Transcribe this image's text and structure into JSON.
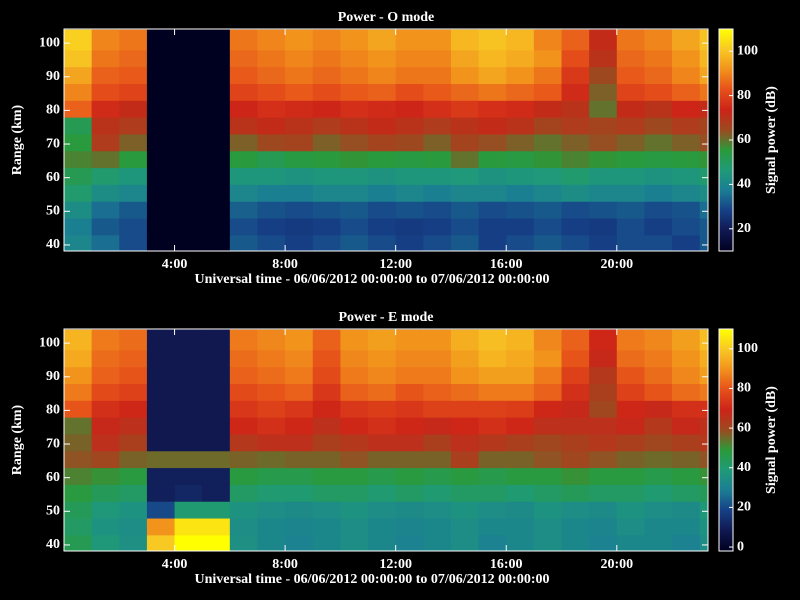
{
  "chart_data": [
    {
      "type": "heatmap",
      "title": "Power - O mode",
      "xlabel": "Universal time - 06/06/2012 00:00:00 to 07/06/2012 00:00:00",
      "ylabel": "Range (km)",
      "colorbar_label": "Signal power (dB)",
      "xlim": [
        0,
        23.3
      ],
      "ylim": [
        38.2,
        104.2
      ],
      "xticks": [
        {
          "value": 4,
          "label": "4:00"
        },
        {
          "value": 8,
          "label": "8:00"
        },
        {
          "value": 12,
          "label": "12:00"
        },
        {
          "value": 16,
          "label": "16:00"
        },
        {
          "value": 20,
          "label": "20:00"
        }
      ],
      "yticks": [
        40,
        50,
        60,
        70,
        80,
        90,
        100
      ],
      "clim": [
        10,
        110
      ],
      "cticks": [
        20,
        40,
        60,
        80,
        100
      ],
      "colormap": [
        "#000020",
        "#101850",
        "#163f86",
        "#1b7d94",
        "#1f9a78",
        "#2a9a3a",
        "#9c4a20",
        "#cc2418",
        "#e6501a",
        "#f2921c",
        "#f8c824",
        "#ffff00"
      ],
      "xbins": [
        0,
        1,
        2,
        3,
        4,
        5,
        6,
        7,
        8,
        9,
        10,
        11,
        12,
        13,
        14,
        15,
        16,
        17,
        18,
        19,
        20,
        21,
        22,
        23,
        24
      ],
      "ybins": [
        38,
        43,
        48,
        53,
        58,
        63,
        68,
        73,
        78,
        83,
        88,
        93,
        98,
        104
      ],
      "z": [
        [
          40,
          35,
          30,
          5,
          5,
          5,
          32,
          30,
          28,
          30,
          32,
          30,
          28,
          30,
          32,
          28,
          30,
          32,
          30,
          28,
          30,
          30,
          28,
          32
        ],
        [
          38,
          32,
          30,
          5,
          5,
          5,
          30,
          28,
          27,
          28,
          30,
          28,
          27,
          28,
          30,
          28,
          28,
          30,
          28,
          27,
          30,
          28,
          30,
          32
        ],
        [
          42,
          35,
          32,
          5,
          5,
          5,
          33,
          31,
          30,
          31,
          32,
          30,
          31,
          30,
          32,
          30,
          31,
          32,
          30,
          31,
          32,
          30,
          31,
          35
        ],
        [
          48,
          42,
          40,
          5,
          5,
          5,
          40,
          38,
          38,
          40,
          40,
          38,
          40,
          38,
          40,
          40,
          38,
          40,
          42,
          40,
          40,
          38,
          40,
          42
        ],
        [
          52,
          48,
          45,
          5,
          5,
          5,
          45,
          45,
          44,
          45,
          45,
          44,
          45,
          45,
          46,
          44,
          45,
          46,
          48,
          45,
          45,
          44,
          45,
          48
        ],
        [
          58,
          60,
          55,
          5,
          5,
          5,
          55,
          52,
          54,
          55,
          56,
          55,
          54,
          55,
          60,
          55,
          54,
          56,
          58,
          56,
          55,
          54,
          55,
          56
        ],
        [
          55,
          68,
          62,
          5,
          5,
          5,
          62,
          65,
          66,
          62,
          64,
          66,
          65,
          62,
          66,
          64,
          62,
          60,
          62,
          64,
          62,
          60,
          62,
          64
        ],
        [
          52,
          70,
          68,
          5,
          5,
          5,
          70,
          72,
          70,
          68,
          70,
          72,
          70,
          68,
          70,
          72,
          70,
          66,
          68,
          66,
          68,
          65,
          68,
          66
        ],
        [
          85,
          75,
          72,
          5,
          5,
          5,
          74,
          76,
          75,
          74,
          76,
          75,
          74,
          76,
          78,
          76,
          75,
          72,
          70,
          60,
          72,
          70,
          74,
          72
        ],
        [
          90,
          82,
          80,
          5,
          5,
          5,
          80,
          82,
          84,
          82,
          84,
          85,
          82,
          84,
          86,
          88,
          86,
          84,
          75,
          62,
          80,
          82,
          85,
          88
        ],
        [
          95,
          85,
          84,
          5,
          5,
          5,
          84,
          86,
          88,
          86,
          88,
          90,
          88,
          88,
          92,
          95,
          92,
          88,
          78,
          65,
          84,
          86,
          90,
          95
        ],
        [
          100,
          88,
          86,
          5,
          5,
          5,
          86,
          88,
          90,
          88,
          90,
          92,
          90,
          90,
          95,
          98,
          96,
          92,
          82,
          70,
          86,
          88,
          92,
          98
        ],
        [
          102,
          90,
          88,
          5,
          5,
          5,
          88,
          90,
          92,
          90,
          92,
          95,
          92,
          92,
          98,
          100,
          98,
          90,
          85,
          72,
          88,
          90,
          95,
          100
        ]
      ]
    },
    {
      "type": "heatmap",
      "title": "Power - E mode",
      "xlabel": "Universal time - 06/06/2012 00:00:00 to 07/06/2012 00:00:00",
      "ylabel": "Range (km)",
      "colorbar_label": "Signal power (dB)",
      "xlim": [
        0,
        23.3
      ],
      "ylim": [
        38.2,
        104.2
      ],
      "xticks": [
        {
          "value": 4,
          "label": "4:00"
        },
        {
          "value": 8,
          "label": "8:00"
        },
        {
          "value": 12,
          "label": "12:00"
        },
        {
          "value": 16,
          "label": "16:00"
        },
        {
          "value": 20,
          "label": "20:00"
        }
      ],
      "yticks": [
        40,
        50,
        60,
        70,
        80,
        90,
        100
      ],
      "clim": [
        -2,
        110
      ],
      "cticks": [
        0,
        20,
        40,
        60,
        80,
        100
      ],
      "colormap": [
        "#000020",
        "#101850",
        "#163f86",
        "#1b7d94",
        "#1f9a78",
        "#2a9a3a",
        "#9c4a20",
        "#cc2418",
        "#e6501a",
        "#f2921c",
        "#f8c824",
        "#ffff00"
      ],
      "xbins": [
        0,
        1,
        2,
        3,
        4,
        5,
        6,
        7,
        8,
        9,
        10,
        11,
        12,
        13,
        14,
        15,
        16,
        17,
        18,
        19,
        20,
        21,
        22,
        23,
        24
      ],
      "ybins": [
        38,
        43,
        48,
        53,
        58,
        63,
        68,
        73,
        78,
        83,
        88,
        93,
        98,
        104
      ],
      "z": [
        [
          45,
          38,
          35,
          100,
          110,
          110,
          35,
          32,
          30,
          32,
          34,
          32,
          30,
          32,
          34,
          30,
          32,
          34,
          32,
          30,
          32,
          32,
          30,
          34
        ],
        [
          42,
          36,
          34,
          90,
          105,
          105,
          34,
          32,
          31,
          32,
          34,
          32,
          31,
          32,
          34,
          32,
          32,
          34,
          32,
          31,
          34,
          32,
          32,
          36
        ],
        [
          44,
          38,
          36,
          20,
          40,
          40,
          36,
          34,
          33,
          34,
          36,
          34,
          33,
          34,
          36,
          34,
          33,
          36,
          34,
          33,
          36,
          34,
          33,
          38
        ],
        [
          48,
          44,
          42,
          10,
          12,
          10,
          42,
          40,
          40,
          42,
          42,
          40,
          42,
          40,
          42,
          42,
          40,
          42,
          44,
          42,
          42,
          40,
          42,
          44
        ],
        [
          52,
          50,
          48,
          10,
          10,
          10,
          48,
          46,
          46,
          48,
          48,
          46,
          48,
          46,
          48,
          46,
          48,
          48,
          50,
          48,
          48,
          46,
          48,
          50
        ],
        [
          58,
          60,
          56,
          55,
          55,
          55,
          56,
          55,
          56,
          56,
          58,
          56,
          56,
          56,
          62,
          56,
          56,
          58,
          60,
          58,
          56,
          55,
          56,
          58
        ],
        [
          56,
          66,
          62,
          8,
          8,
          8,
          64,
          66,
          66,
          62,
          64,
          66,
          66,
          62,
          66,
          64,
          62,
          60,
          62,
          64,
          62,
          60,
          62,
          64
        ],
        [
          54,
          68,
          66,
          8,
          8,
          8,
          70,
          72,
          70,
          66,
          70,
          72,
          70,
          68,
          70,
          72,
          70,
          66,
          66,
          66,
          68,
          64,
          68,
          66
        ],
        [
          80,
          72,
          70,
          8,
          8,
          8,
          74,
          76,
          74,
          70,
          74,
          75,
          74,
          76,
          76,
          76,
          75,
          70,
          68,
          60,
          70,
          68,
          72,
          72
        ],
        [
          86,
          78,
          76,
          8,
          8,
          8,
          78,
          80,
          82,
          74,
          82,
          84,
          80,
          82,
          84,
          86,
          86,
          82,
          72,
          62,
          76,
          80,
          84,
          86
        ],
        [
          90,
          82,
          80,
          8,
          8,
          8,
          82,
          84,
          86,
          78,
          86,
          88,
          86,
          86,
          90,
          92,
          92,
          86,
          76,
          64,
          80,
          84,
          88,
          92
        ],
        [
          94,
          84,
          82,
          8,
          8,
          8,
          84,
          86,
          88,
          80,
          88,
          90,
          88,
          88,
          92,
          96,
          94,
          90,
          80,
          68,
          84,
          86,
          90,
          95
        ],
        [
          96,
          86,
          84,
          8,
          8,
          8,
          86,
          88,
          90,
          82,
          90,
          92,
          90,
          90,
          95,
          98,
          96,
          88,
          82,
          70,
          86,
          88,
          92,
          98
        ]
      ]
    }
  ]
}
